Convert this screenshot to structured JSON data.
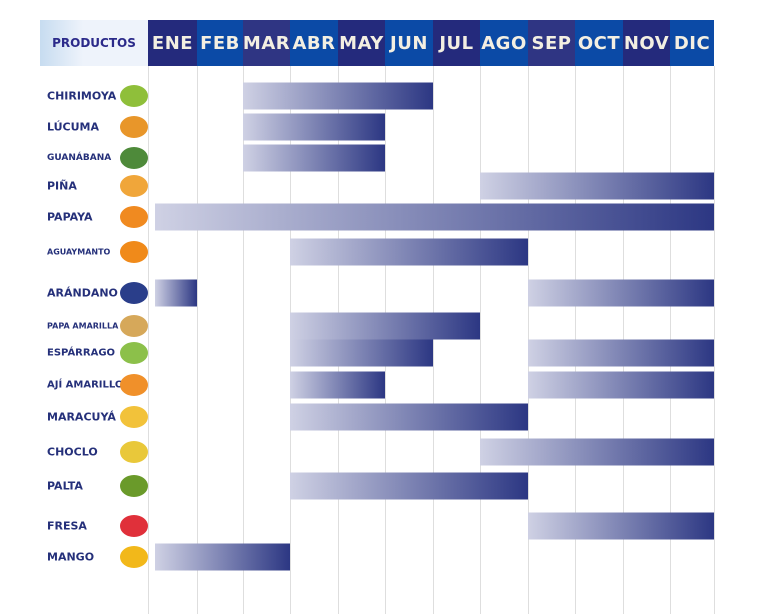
{
  "chart_data": {
    "type": "gantt",
    "title": "",
    "header_label": "PRODUCTOS",
    "months": [
      "ENE",
      "FEB",
      "MAR",
      "ABR",
      "MAY",
      "JUN",
      "JUL",
      "AGO",
      "SEP",
      "OCT",
      "NOV",
      "DIC"
    ],
    "month_colors": [
      "#242a7c",
      "#0b4aa6",
      "#2f3583",
      "#0b4aa6",
      "#242a7c",
      "#0b4aa6",
      "#242a7c",
      "#0b4aa6",
      "#2f3583",
      "#0b4aa6",
      "#242a7c",
      "#0b4aa6"
    ],
    "bar_colors": [
      "#cfd1e4",
      "#2c3783"
    ],
    "products": [
      {
        "name": "CHIRIMOYA",
        "icon": "cherimoya-icon",
        "color": "#8fbf3a",
        "periods": [
          [
            3,
            6
          ]
        ]
      },
      {
        "name": "LÚCUMA",
        "icon": "lucuma-icon",
        "color": "#e8962a",
        "periods": [
          [
            3,
            5
          ]
        ]
      },
      {
        "name": "GUANÁBANA",
        "icon": "soursop-icon",
        "color": "#4e8a3a",
        "periods": [
          [
            3,
            5
          ]
        ]
      },
      {
        "name": "PIÑA",
        "icon": "pineapple-icon",
        "color": "#f0a63a",
        "periods": [
          [
            8,
            12
          ]
        ]
      },
      {
        "name": "PAPAYA",
        "icon": "papaya-icon",
        "color": "#f08a20",
        "periods": [
          [
            1,
            12
          ]
        ]
      },
      {
        "name": "AGUAYMANTO",
        "icon": "goldenberry-icon",
        "color": "#f08a1a",
        "periods": [
          [
            4,
            8
          ]
        ]
      },
      {
        "name": "ARÁNDANO",
        "icon": "blueberry-icon",
        "color": "#2a3e8a",
        "periods": [
          [
            1,
            1
          ],
          [
            9,
            12
          ]
        ]
      },
      {
        "name": "PAPA AMARILLA",
        "icon": "potato-icon",
        "color": "#d6a85a",
        "periods": [
          [
            4,
            7
          ]
        ]
      },
      {
        "name": "ESPÁRRAGO",
        "icon": "asparagus-icon",
        "color": "#8cc04a",
        "periods": [
          [
            4,
            6
          ],
          [
            9,
            12
          ]
        ]
      },
      {
        "name": "AJÍ AMARILLO",
        "icon": "chili-icon",
        "color": "#f0902a",
        "periods": [
          [
            4,
            5
          ],
          [
            9,
            12
          ]
        ]
      },
      {
        "name": "MARACUYÁ",
        "icon": "passion-fruit-icon",
        "color": "#f2c23a",
        "periods": [
          [
            4,
            8
          ]
        ]
      },
      {
        "name": "CHOCLO",
        "icon": "corn-icon",
        "color": "#e9c83a",
        "periods": [
          [
            8,
            12
          ]
        ]
      },
      {
        "name": "PALTA",
        "icon": "avocado-icon",
        "color": "#6a9a2a",
        "periods": [
          [
            4,
            8
          ]
        ]
      },
      {
        "name": "FRESA",
        "icon": "strawberry-icon",
        "color": "#e0303a",
        "periods": [
          [
            9,
            12
          ]
        ]
      },
      {
        "name": "MANGO",
        "icon": "mango-icon",
        "color": "#f2b81a",
        "periods": [
          [
            1,
            3
          ]
        ]
      }
    ]
  }
}
